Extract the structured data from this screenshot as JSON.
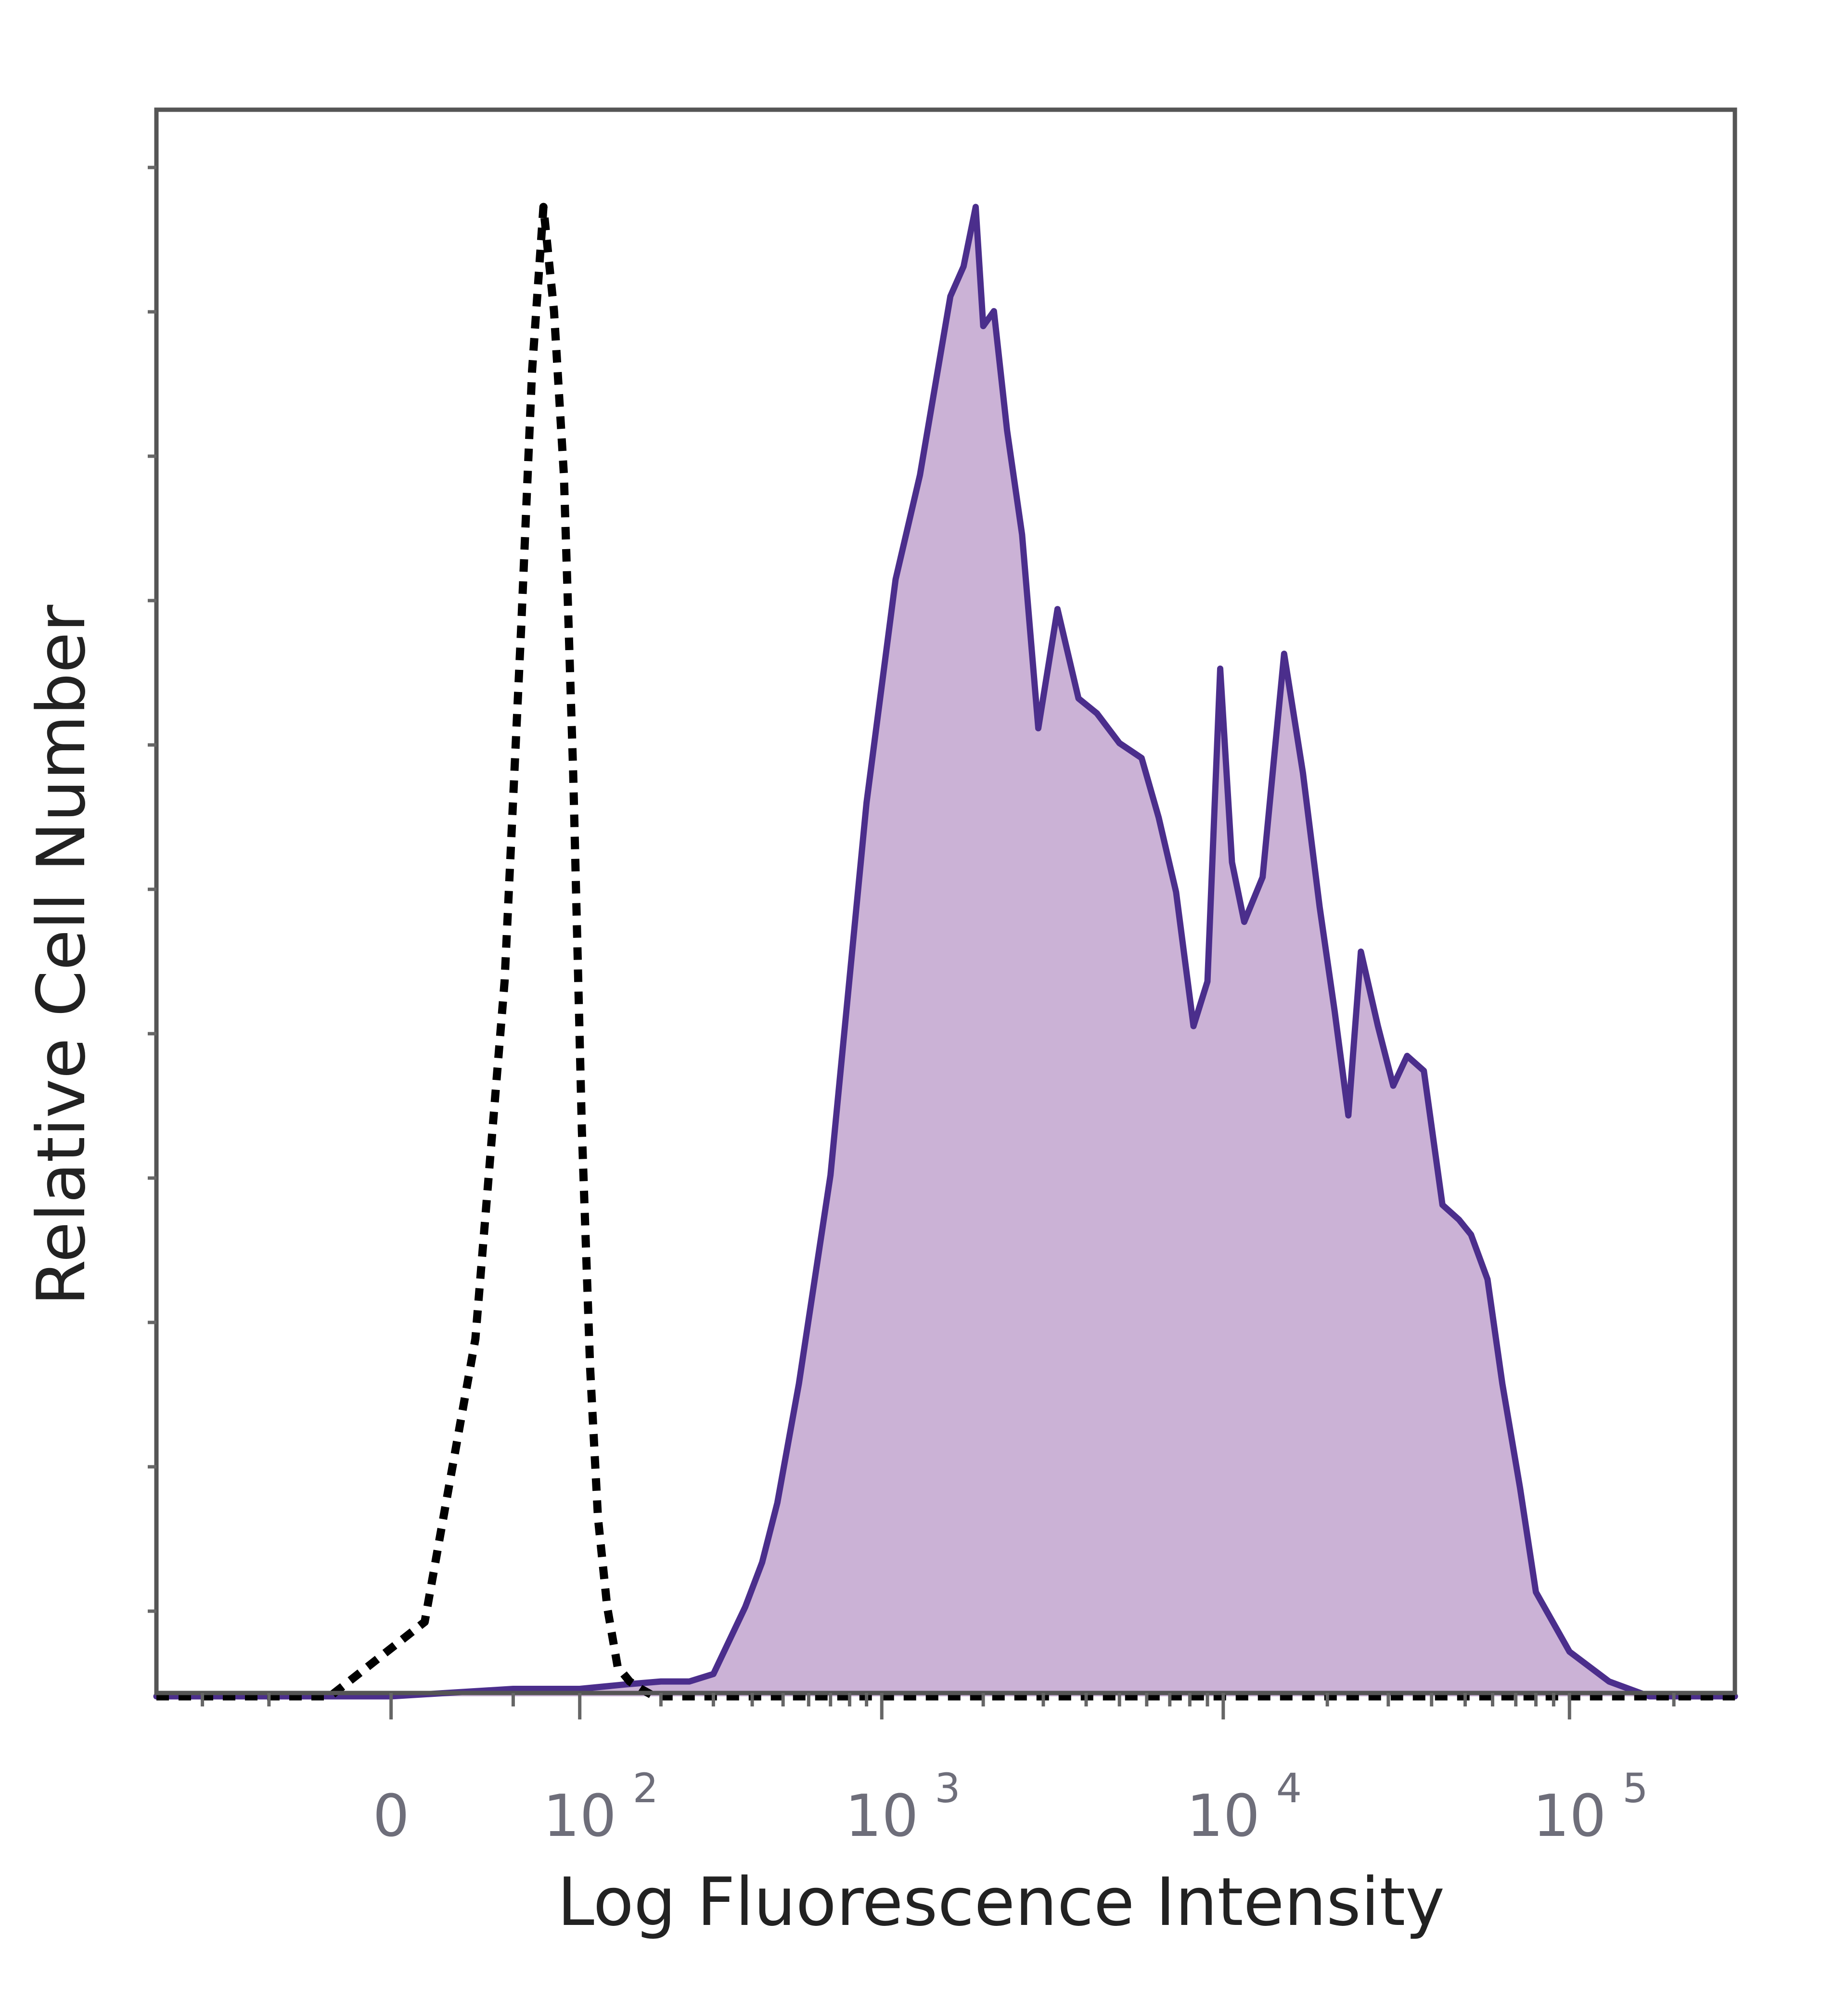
{
  "chart_data": {
    "type": "area",
    "xlabel": "Log Fluorescence Intensity",
    "ylabel": "Relative Cell Number",
    "x_scale": "biexponential",
    "xlim": [
      -150,
      300000
    ],
    "ylim": [
      0,
      1.1
    ],
    "grid": false,
    "legend": "none",
    "x_ticks": [
      {
        "value": 0,
        "base": "0",
        "exp": ""
      },
      {
        "value": 100,
        "base": "10",
        "exp": "2"
      },
      {
        "value": 1000,
        "base": "10",
        "exp": "3"
      },
      {
        "value": 10000,
        "base": "10",
        "exp": "4"
      },
      {
        "value": 100000,
        "base": "10",
        "exp": "5"
      }
    ],
    "series": [
      {
        "style": "dashed",
        "color": "#000000",
        "x": [
          -150,
          -20,
          10,
          30,
          45,
          55,
          62,
          70,
          78,
          86,
          94,
          102,
          110,
          118,
          128,
          140,
          155,
          170,
          190,
          230,
          300,
          1000,
          300000
        ],
        "y": [
          0,
          0,
          0.05,
          0.24,
          0.48,
          0.72,
          0.89,
          1.0,
          0.93,
          0.82,
          0.62,
          0.38,
          0.22,
          0.12,
          0.06,
          0.02,
          0.01,
          0.005,
          0,
          0,
          0,
          0,
          0
        ]
      },
      {
        "style": "solid-filled",
        "color": "#4b2e8c",
        "fill": "#cbb2d6",
        "x": [
          -150,
          0,
          50,
          100,
          150,
          200,
          250,
          300,
          380,
          430,
          480,
          560,
          700,
          900,
          1100,
          1300,
          1600,
          1750,
          1900,
          2000,
          2150,
          2350,
          2600,
          2900,
          3300,
          3800,
          4300,
          5000,
          5800,
          6500,
          7300,
          8200,
          9000,
          9800,
          10600,
          11500,
          13000,
          15000,
          17000,
          19000,
          21000,
          23000,
          25000,
          28000,
          31000,
          34000,
          38000,
          43000,
          48000,
          52000,
          58000,
          64000,
          72000,
          80000,
          100000,
          130000,
          170000,
          220000,
          300000
        ],
        "y": [
          0,
          0,
          0.005,
          0.005,
          0.008,
          0.01,
          0.01,
          0.015,
          0.06,
          0.09,
          0.13,
          0.21,
          0.35,
          0.6,
          0.75,
          0.82,
          0.94,
          0.96,
          1.0,
          0.92,
          0.93,
          0.85,
          0.78,
          0.65,
          0.73,
          0.67,
          0.66,
          0.64,
          0.63,
          0.59,
          0.54,
          0.45,
          0.48,
          0.69,
          0.56,
          0.52,
          0.55,
          0.7,
          0.62,
          0.53,
          0.46,
          0.39,
          0.5,
          0.45,
          0.41,
          0.43,
          0.42,
          0.33,
          0.32,
          0.31,
          0.28,
          0.21,
          0.14,
          0.07,
          0.03,
          0.01,
          0,
          0,
          0
        ]
      }
    ]
  }
}
